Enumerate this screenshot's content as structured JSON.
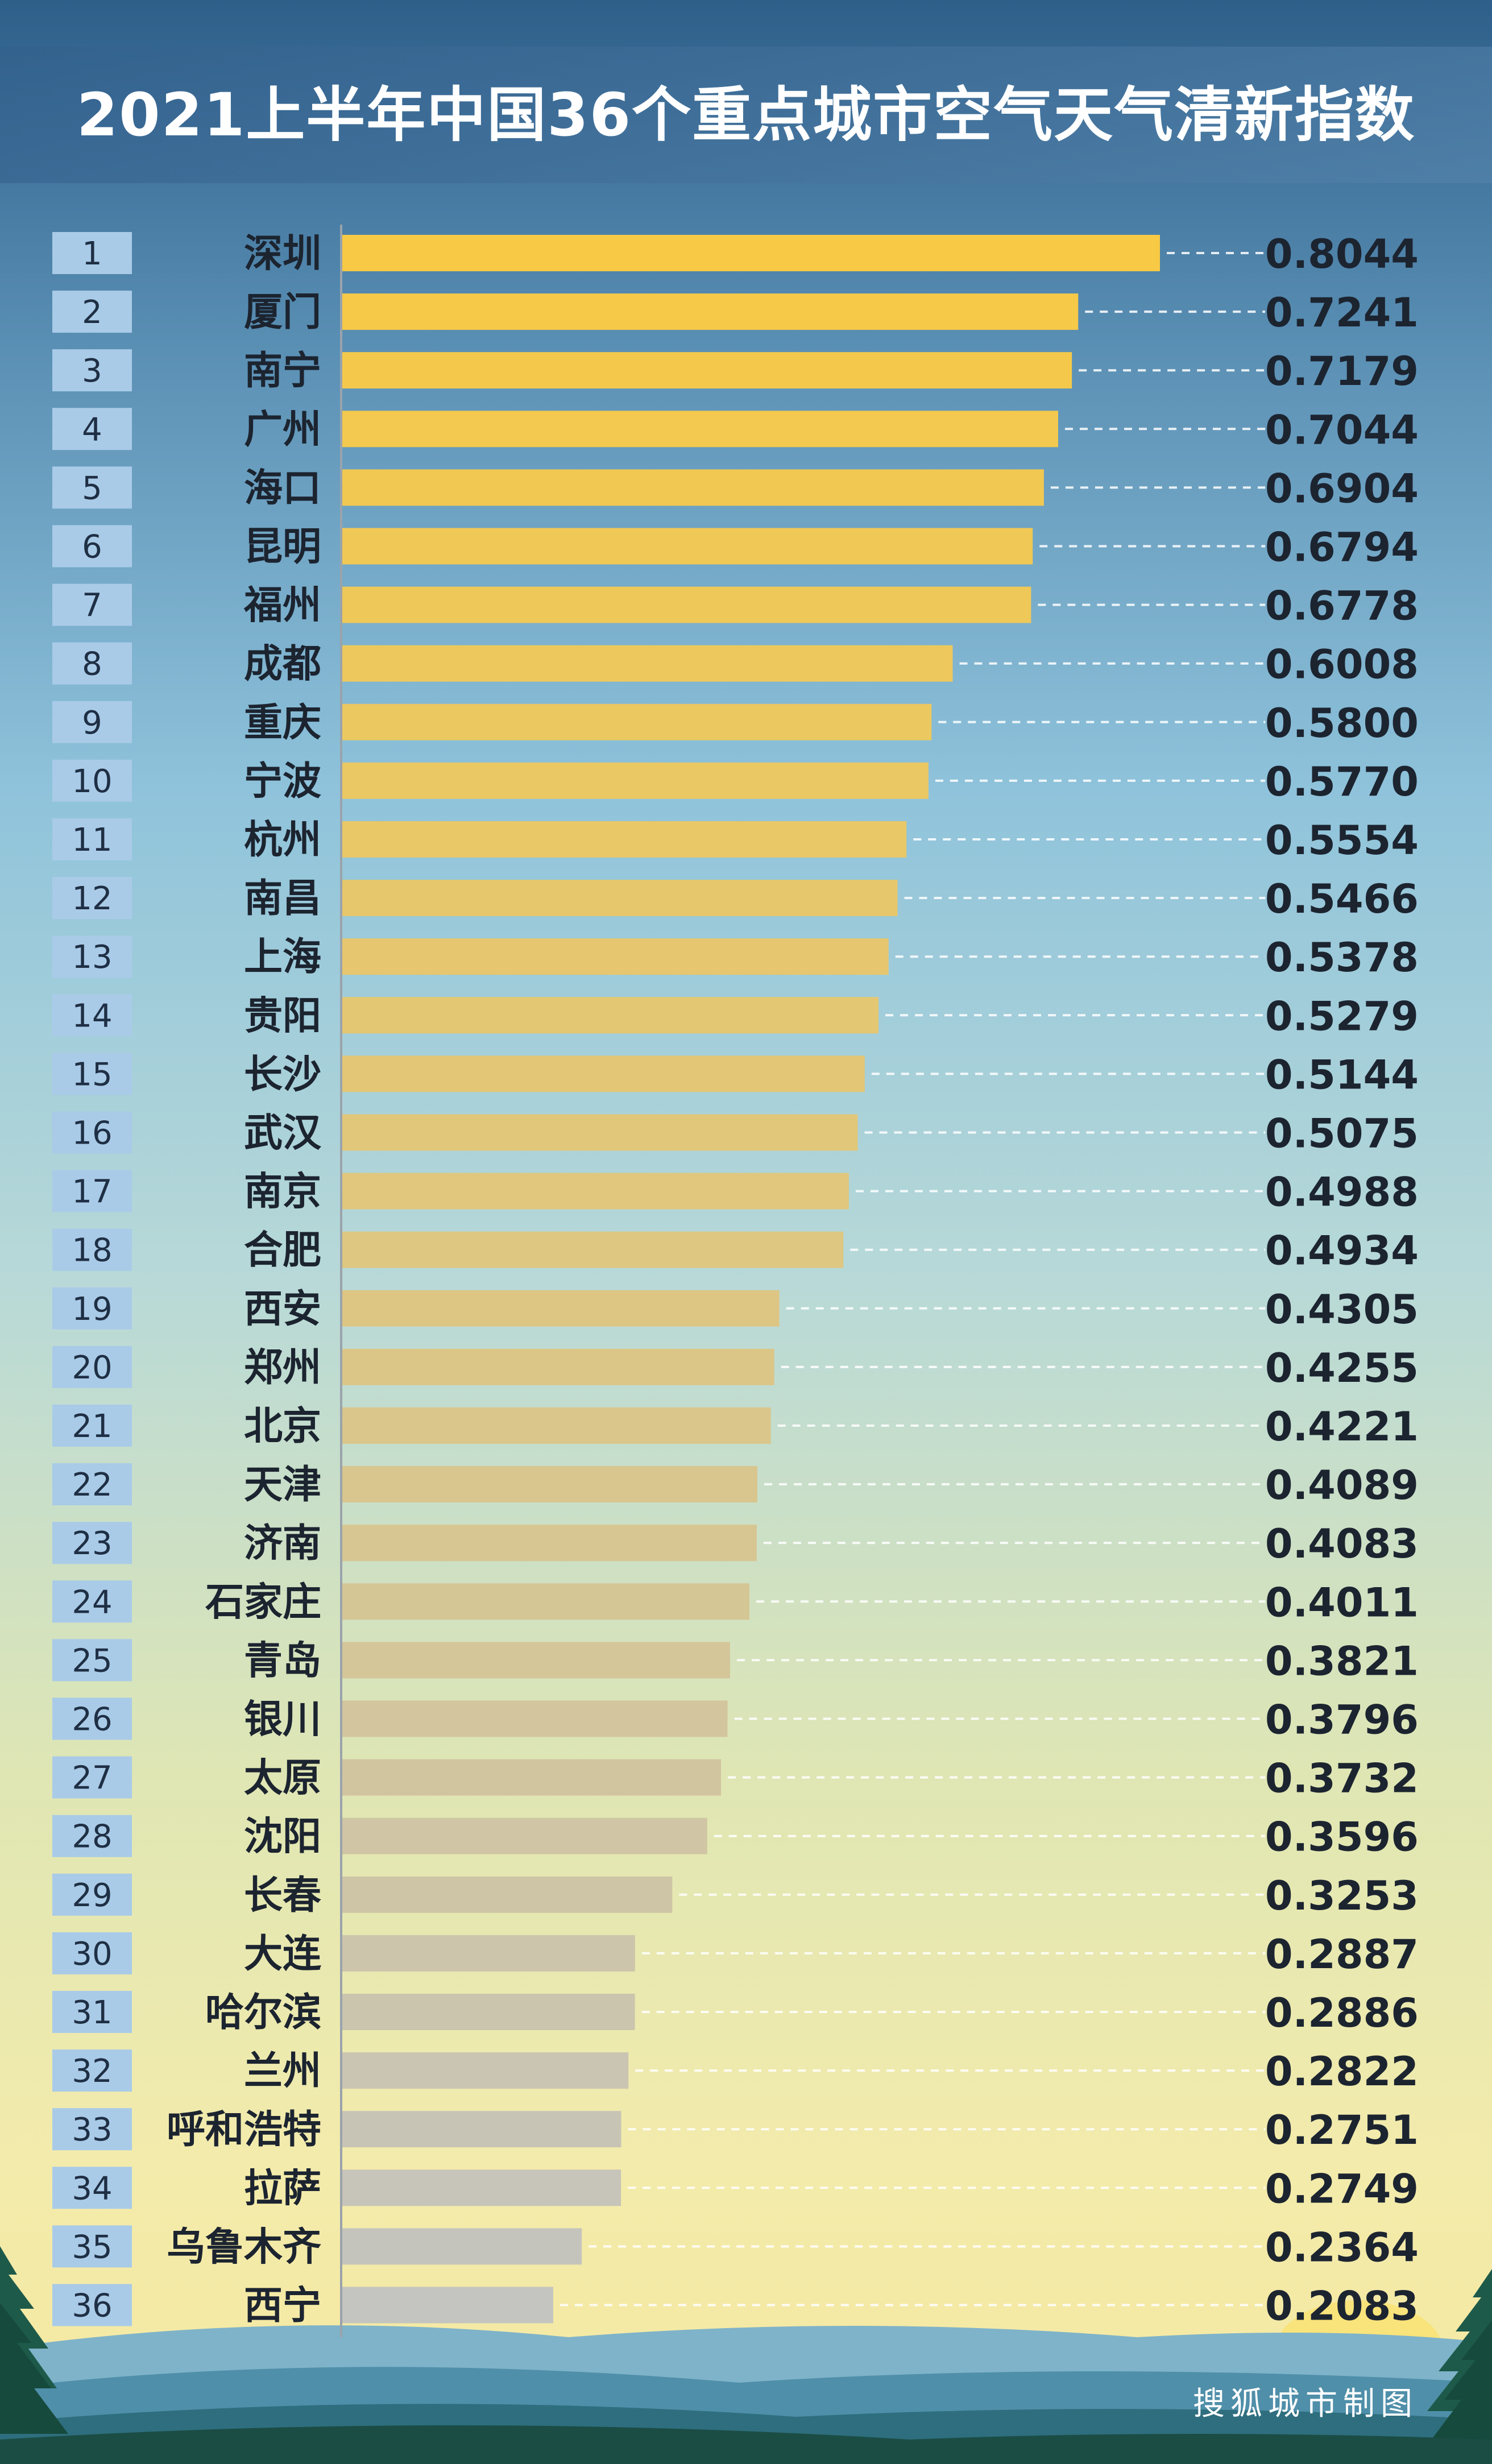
{
  "title": "2021上半年中国36个重点城市空气天气清新指数",
  "credit": "搜狐城市制图",
  "colors": {
    "bar_top": "#f7c944",
    "bar_bottom": "#c4c4c0",
    "rank_box": "#a9cbe8",
    "axis": "#9aa3ab"
  },
  "chart_data": {
    "type": "bar",
    "orientation": "horizontal",
    "ranks": [
      "1",
      "2",
      "3",
      "4",
      "5",
      "6",
      "7",
      "8",
      "9",
      "10",
      "11",
      "12",
      "13",
      "14",
      "15",
      "16",
      "17",
      "18",
      "19",
      "20",
      "21",
      "22",
      "23",
      "24",
      "25",
      "26",
      "27",
      "28",
      "29",
      "30",
      "31",
      "32",
      "33",
      "34",
      "35",
      "36"
    ],
    "categories": [
      "深圳",
      "厦门",
      "南宁",
      "广州",
      "海口",
      "昆明",
      "福州",
      "成都",
      "重庆",
      "宁波",
      "杭州",
      "南昌",
      "上海",
      "贵阳",
      "长沙",
      "武汉",
      "南京",
      "合肥",
      "西安",
      "郑州",
      "北京",
      "天津",
      "济南",
      "石家庄",
      "青岛",
      "银川",
      "太原",
      "沈阳",
      "长春",
      "大连",
      "哈尔滨",
      "兰州",
      "呼和浩特",
      "拉萨",
      "乌鲁木齐",
      "西宁"
    ],
    "values": [
      0.8044,
      0.7241,
      0.7179,
      0.7044,
      0.6904,
      0.6794,
      0.6778,
      0.6008,
      0.58,
      0.577,
      0.5554,
      0.5466,
      0.5378,
      0.5279,
      0.5144,
      0.5075,
      0.4988,
      0.4934,
      0.4305,
      0.4255,
      0.4221,
      0.4089,
      0.4083,
      0.4011,
      0.3821,
      0.3796,
      0.3732,
      0.3596,
      0.3253,
      0.2887,
      0.2886,
      0.2822,
      0.2751,
      0.2749,
      0.2364,
      0.2083
    ],
    "value_labels": [
      "0.8044",
      "0.7241",
      "0.7179",
      "0.7044",
      "0.6904",
      "0.6794",
      "0.6778",
      "0.6008",
      "0.5800",
      "0.5770",
      "0.5554",
      "0.5466",
      "0.5378",
      "0.5279",
      "0.5144",
      "0.5075",
      "0.4988",
      "0.4934",
      "0.4305",
      "0.4255",
      "0.4221",
      "0.4089",
      "0.4083",
      "0.4011",
      "0.3821",
      "0.3796",
      "0.3732",
      "0.3596",
      "0.3253",
      "0.2887",
      "0.2886",
      "0.2822",
      "0.2751",
      "0.2749",
      "0.2364",
      "0.2083"
    ],
    "xlim": [
      0,
      0.8044
    ],
    "grid": false,
    "legend": "none"
  }
}
